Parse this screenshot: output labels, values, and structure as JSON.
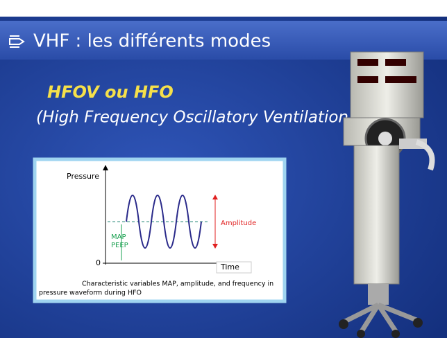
{
  "header": {
    "title": "VHF : les différents modes"
  },
  "subtitle": {
    "line1": "HFOV ou HFO",
    "line2": "(High Frequency Oscillatory Ventilation)"
  },
  "figure": {
    "y_label": "Pressure",
    "origin": "0",
    "x_label": "Time",
    "map": "MAP",
    "peep": "PEEP",
    "amplitude": "Amplitude",
    "caption": [
      "Characteristic variables MAP, amplitude, and frequency in",
      "pressure waveform during HFO"
    ]
  }
}
